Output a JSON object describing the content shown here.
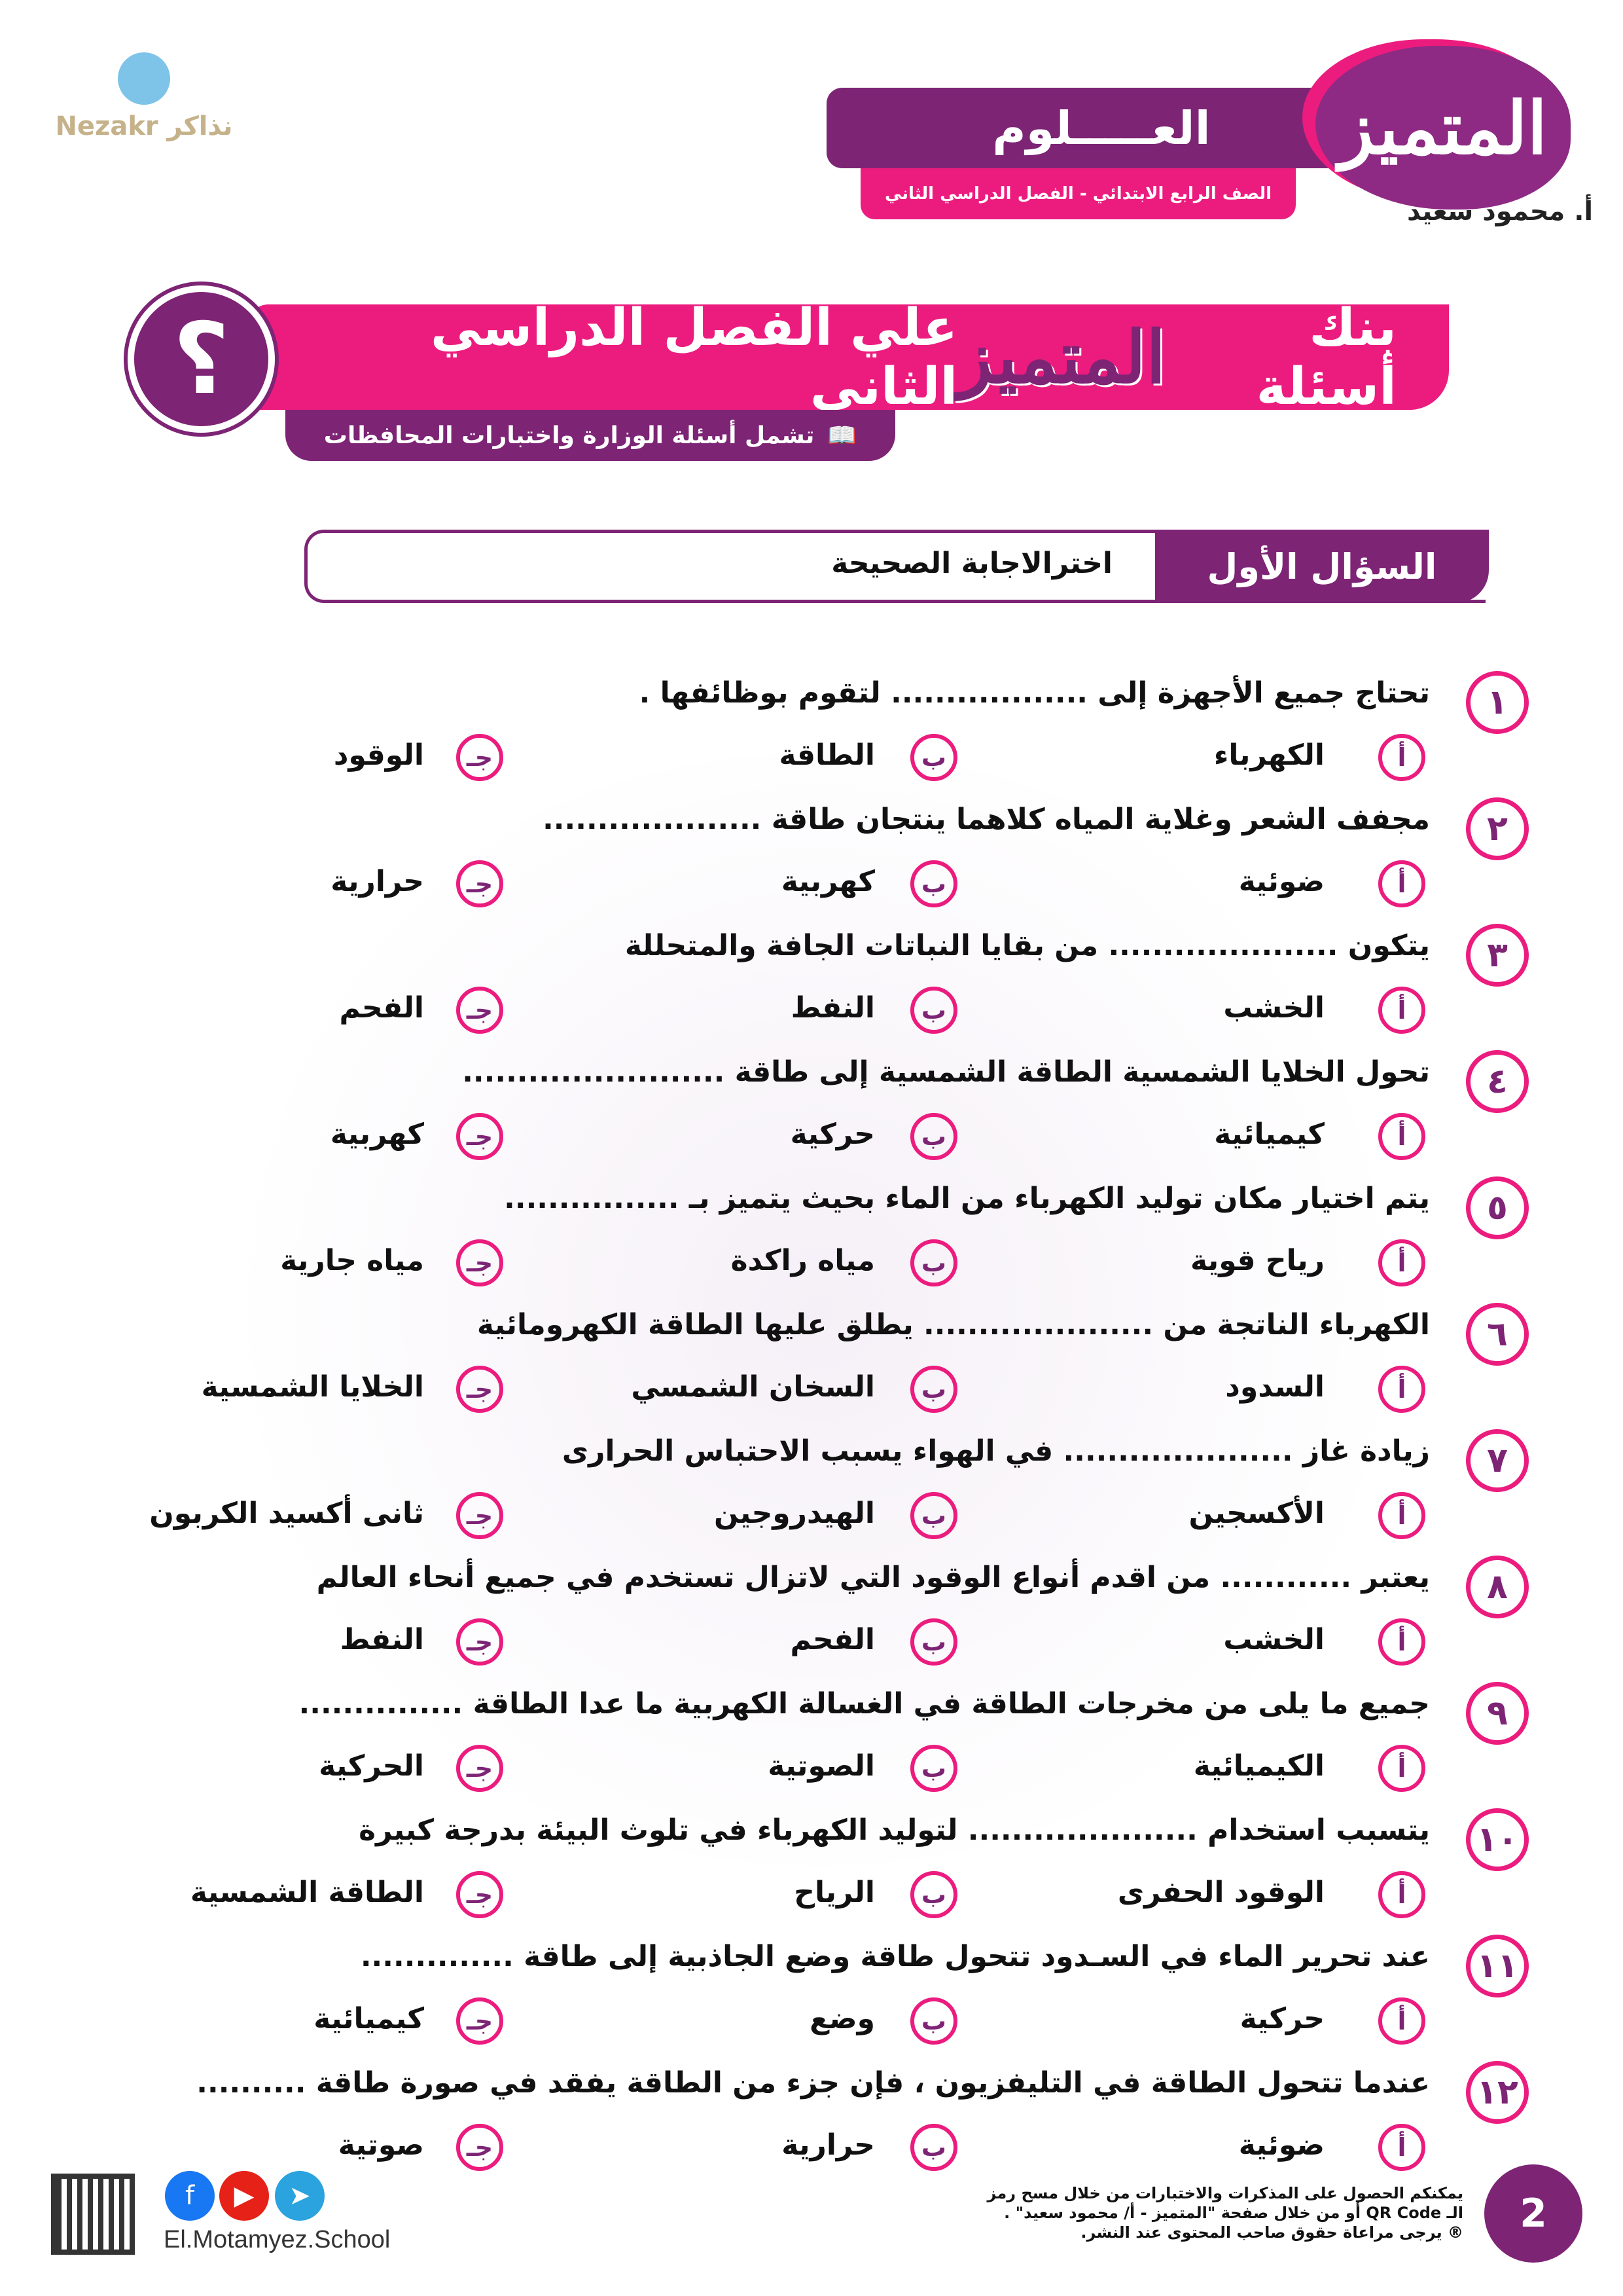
{
  "header": {
    "subject": "العـــــلوم",
    "grade": "الصف الرابع الابتدائي - الفصل الدراسي الثاني",
    "brand": "المتميز",
    "author": "أ. محمود سعيد",
    "logo_text": "Nezakr نذاكر"
  },
  "banner": {
    "title_right": "بنك أسئلة",
    "title_mid": "المتميز",
    "title_left": "علي الفصل الدراسي الثاني",
    "symbol": "؟",
    "subtitle": "تشمل أسئلة الوزارة واختبارات المحافظات",
    "subtitle_icon": "book-icon"
  },
  "section": {
    "label": "السؤال الأول",
    "instruction": "اخترالاجابة الصحيحة"
  },
  "letters": [
    "أ",
    "ب",
    "جـ"
  ],
  "questions": [
    {
      "n": "١",
      "text": "تحتاج جميع الأجهزة إلى .................. لتقوم بوظائفها .",
      "options": [
        "الكهرباء",
        "الطاقة",
        "الوقود"
      ]
    },
    {
      "n": "٢",
      "text": "مجفف الشعر وغلاية المياه كلاهما ينتجان طاقة ....................",
      "options": [
        "ضوئية",
        "كهربية",
        "حرارية"
      ]
    },
    {
      "n": "٣",
      "text": "يتكون ..................... من بقايا النباتات الجافة والمتحللة",
      "options": [
        "الخشب",
        "النفط",
        "الفحم"
      ]
    },
    {
      "n": "٤",
      "text": "تحول الخلايا الشمسية الطاقة الشمسية إلى طاقة ........................",
      "options": [
        "كيميائية",
        "حركية",
        "كهربية"
      ]
    },
    {
      "n": "٥",
      "text": "يتم اختيار مكان توليد الكهرباء من الماء بحيث يتميز بـ ................",
      "options": [
        "رياح قوية",
        "مياه راكدة",
        "مياه جارية"
      ]
    },
    {
      "n": "٦",
      "text": "الكهرباء الناتجة من ..................... يطلق عليها الطاقة الكهرومائية",
      "options": [
        "السدود",
        "السخان الشمسي",
        "الخلايا الشمسية"
      ]
    },
    {
      "n": "٧",
      "text": "زيادة غاز ..................... في الهواء يسبب الاحتباس الحرارى",
      "options": [
        "الأكسجين",
        "الهيدروجين",
        "ثانى أكسيد الكربون"
      ]
    },
    {
      "n": "٨",
      "text": "يعتبر ............ من اقدم أنواع الوقود التي لاتزال تستخدم في جميع أنحاء العالم",
      "options": [
        "الخشب",
        "الفحم",
        "النفط"
      ]
    },
    {
      "n": "٩",
      "text": "جميع ما يلى من مخرجات الطاقة في الغسالة الكهربية ما عدا الطاقة ...............",
      "options": [
        "الكيميائية",
        "الصوتية",
        "الحركية"
      ]
    },
    {
      "n": "١٠",
      "text": "يتسبب استخدام ..................... لتوليد الكهرباء في تلوث البيئة بدرجة كبيرة",
      "options": [
        "الوقود الحفرى",
        "الرياح",
        "الطاقة الشمسية"
      ]
    },
    {
      "n": "١١",
      "text": "عند تحرير الماء في السـدود تتحول طاقة وضع الجاذبية إلى طاقة ..............",
      "options": [
        "حركية",
        "وضع",
        "كيميائية"
      ]
    },
    {
      "n": "١٢",
      "text": "عندما تتحول الطاقة في التليفزيون ، فإن جزء من الطاقة يفقد في صورة طاقة ..........",
      "options": [
        "ضوئية",
        "حرارية",
        "صوتية"
      ]
    }
  ],
  "footer": {
    "page": "2",
    "line1": "يمكنكم الحصول على المذكرات والاختبارات من خلال مسح رمز",
    "line2": "الـ QR Code أو من خلال صفحة \"المتميز - أ/ محمود سعيد\" .",
    "line3": "® يرجى مراعاة حقوق صاحب المحتوى عند النشر.",
    "website": "El.Motamyez.School",
    "social": [
      "facebook-icon",
      "youtube-icon",
      "telegram-icon"
    ]
  },
  "colors": {
    "purple": "#7d2475",
    "pink": "#ec1c7f"
  }
}
